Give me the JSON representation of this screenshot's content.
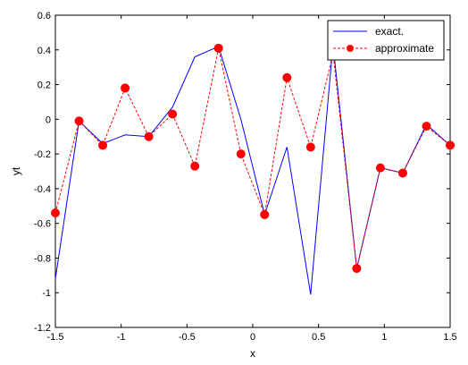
{
  "chart_data": {
    "type": "line",
    "xlabel": "x",
    "ylabel": "yt",
    "xlim": [
      -1.5,
      1.5
    ],
    "ylim": [
      -1.2,
      0.6
    ],
    "x_ticks": [
      "-1.5",
      "-1",
      "-0.5",
      "0",
      "0.5",
      "1",
      "1.5"
    ],
    "x_tick_values": [
      -1.5,
      -1,
      -0.5,
      0,
      0.5,
      1,
      1.5
    ],
    "y_ticks": [
      "-1.2",
      "-1",
      "-0.8",
      "-0.6",
      "-0.4",
      "-0.2",
      "0",
      "0.2",
      "0.4",
      "0.6"
    ],
    "y_tick_values": [
      -1.2,
      -1,
      -0.8,
      -0.6,
      -0.4,
      -0.2,
      0,
      0.2,
      0.4,
      0.6
    ],
    "grid": false,
    "legend_position": "top-right",
    "series": [
      {
        "name": "exact.",
        "color": "#0000ff",
        "style": "solid",
        "marker": "none",
        "x": [
          -1.5,
          -1.32,
          -1.14,
          -0.97,
          -0.79,
          -0.61,
          -0.44,
          -0.26,
          -0.09,
          0.09,
          0.26,
          0.44,
          0.61,
          0.79,
          0.97,
          1.14,
          1.32,
          1.5
        ],
        "y": [
          -0.92,
          -0.01,
          -0.14,
          -0.09,
          -0.1,
          0.07,
          0.36,
          0.42,
          0.0,
          -0.55,
          -0.16,
          -1.01,
          0.43,
          -0.86,
          -0.28,
          -0.31,
          -0.03,
          -0.15
        ]
      },
      {
        "name": "approximate",
        "color": "#ff0000",
        "style": "dashed",
        "marker": "circle",
        "x": [
          -1.5,
          -1.32,
          -1.14,
          -0.97,
          -0.79,
          -0.61,
          -0.44,
          -0.26,
          -0.09,
          0.09,
          0.26,
          0.44,
          0.61,
          0.79,
          0.97,
          1.14,
          1.32,
          1.5
        ],
        "y": [
          -0.54,
          -0.01,
          -0.15,
          0.18,
          -0.1,
          0.03,
          -0.27,
          0.41,
          -0.2,
          -0.55,
          0.24,
          -0.16,
          0.38,
          -0.86,
          -0.28,
          -0.31,
          -0.04,
          -0.15
        ]
      }
    ]
  }
}
